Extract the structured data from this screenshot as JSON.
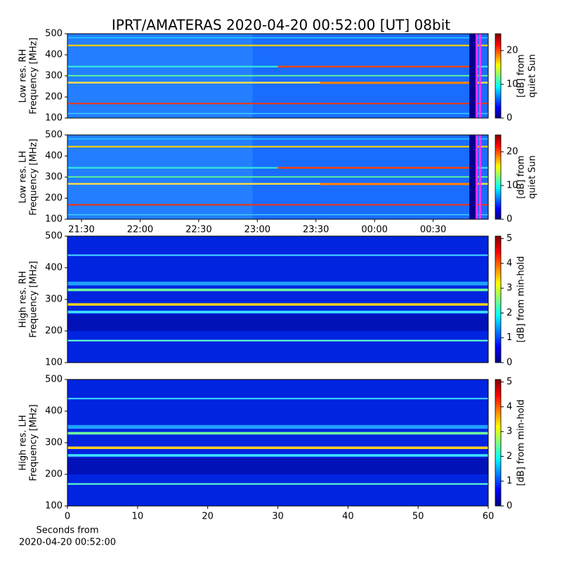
{
  "title": "IPRT/AMATERAS 2020-04-20 00:52:00 [UT]   08bit",
  "chart_data": [
    {
      "type": "heatmap",
      "ylabel": [
        "Low res. RH",
        "Frequency [MHz]"
      ],
      "ylim": [
        100,
        500
      ],
      "yticks": [
        100,
        200,
        300,
        400,
        500
      ],
      "colorbar": {
        "label": [
          "[dB] from",
          "quiet Sun"
        ],
        "lim": [
          0,
          25
        ],
        "ticks": [
          0,
          10,
          20
        ]
      }
    },
    {
      "type": "heatmap",
      "ylabel": [
        "Low res. LH",
        "Frequency [MHz]"
      ],
      "ylim": [
        100,
        500
      ],
      "yticks": [
        100,
        200,
        300,
        400,
        500
      ],
      "colorbar": {
        "label": [
          "[dB] from",
          "quiet Sun"
        ],
        "lim": [
          0,
          25
        ],
        "ticks": [
          0,
          10,
          20
        ]
      },
      "xlim": [
        21.38,
        24.97
      ],
      "xticks": [
        {
          "value": 21.5,
          "label": "21:30"
        },
        {
          "value": 22,
          "label": "22:00"
        },
        {
          "value": 22.5,
          "label": "22:30"
        },
        {
          "value": 23,
          "label": "23:00"
        },
        {
          "value": 23.5,
          "label": "23:30"
        },
        {
          "value": 24,
          "label": "00:00"
        },
        {
          "value": 24.5,
          "label": "00:30"
        }
      ]
    },
    {
      "type": "heatmap",
      "ylabel": [
        "High res. RH",
        "Frequency [MHz]"
      ],
      "ylim": [
        100,
        500
      ],
      "yticks": [
        100,
        200,
        300,
        400,
        500
      ],
      "colorbar": {
        "label": [
          "[dB] from min-hold"
        ],
        "lim": [
          0,
          5.1
        ],
        "ticks": [
          0,
          1,
          2,
          3,
          4,
          5
        ]
      }
    },
    {
      "type": "heatmap",
      "ylabel": [
        "High res. LH",
        "Frequency [MHz]"
      ],
      "ylim": [
        100,
        500
      ],
      "yticks": [
        100,
        200,
        300,
        400,
        500
      ],
      "colorbar": {
        "label": [
          "[dB] from min-hold"
        ],
        "lim": [
          0,
          5.1
        ],
        "ticks": [
          0,
          1,
          2,
          3,
          4,
          5
        ]
      },
      "xlim": [
        0,
        60
      ],
      "xticks": [
        0,
        10,
        20,
        30,
        40,
        50,
        60
      ],
      "xlabel": [
        "Seconds from",
        "2020-04-20 00:52:00"
      ]
    }
  ]
}
